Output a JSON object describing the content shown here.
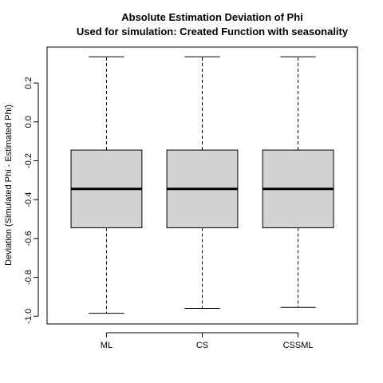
{
  "chart_data": {
    "type": "box",
    "title": "Absolute Estimation Deviation of Phi",
    "subtitle": "Used for simulation: Created Function with seasonality",
    "xlabel": "",
    "ylabel": "Deviation (Simulated Phi - Estimated Phi)",
    "ylim": [
      -1.04,
      0.385
    ],
    "yticks": [
      0.2,
      0.0,
      -0.2,
      -0.4,
      -0.6,
      -0.8,
      -1.0
    ],
    "ytick_labels": [
      "0.2",
      "0.0",
      "-0.2",
      "-0.4",
      "-0.6",
      "-0.8",
      "-1.0"
    ],
    "grid": false,
    "box_fill": "#d3d3d3",
    "categories": [
      "ML",
      "CS",
      "CSSML"
    ],
    "boxes": [
      {
        "name": "ML",
        "whisker_low": -0.985,
        "q1": -0.545,
        "median": -0.345,
        "q3": -0.145,
        "whisker_high": 0.335
      },
      {
        "name": "CS",
        "whisker_low": -0.96,
        "q1": -0.545,
        "median": -0.345,
        "q3": -0.145,
        "whisker_high": 0.335
      },
      {
        "name": "CSSML",
        "whisker_low": -0.955,
        "q1": -0.545,
        "median": -0.345,
        "q3": -0.145,
        "whisker_high": 0.335
      }
    ]
  }
}
